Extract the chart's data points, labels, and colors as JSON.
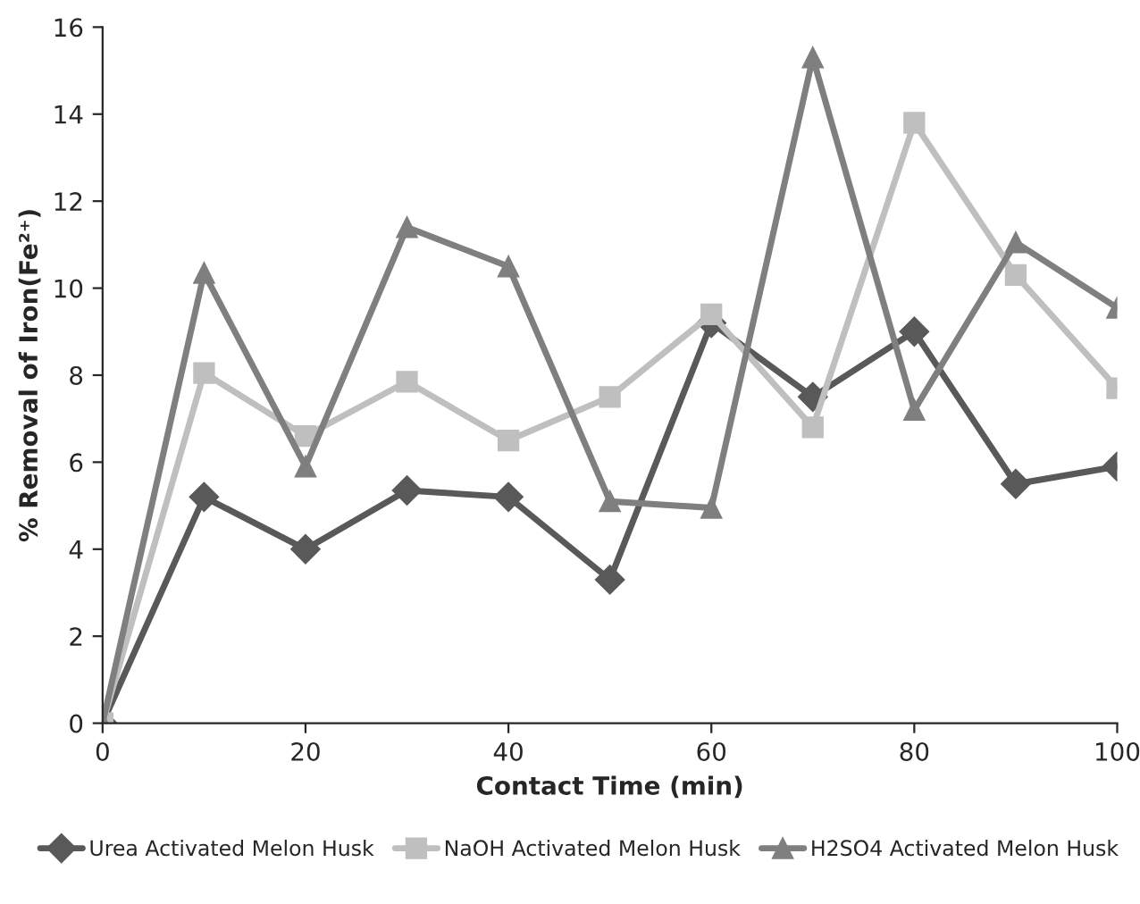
{
  "chart_data": {
    "type": "line",
    "xlabel": "Contact Time (min)",
    "ylabel": "% Removal of Iron(Fe²⁺)",
    "x": [
      0,
      10,
      20,
      30,
      40,
      50,
      60,
      70,
      80,
      90,
      100
    ],
    "series": [
      {
        "name": "Urea Activated Melon Husk",
        "color": "#595959",
        "marker": "diamond",
        "values": [
          0,
          5.2,
          4.0,
          5.35,
          5.2,
          3.3,
          9.2,
          7.5,
          9.0,
          5.5,
          5.9
        ]
      },
      {
        "name": "NaOH Activated Melon Husk",
        "color": "#bfbfbf",
        "marker": "square",
        "values": [
          0,
          8.05,
          6.6,
          7.85,
          6.5,
          7.5,
          9.4,
          6.8,
          13.8,
          10.3,
          7.7
        ]
      },
      {
        "name": "H2SO4 Activated Melon Husk",
        "color": "#7f7f7f",
        "marker": "triangle",
        "values": [
          0,
          10.35,
          5.9,
          11.4,
          10.5,
          5.1,
          4.95,
          15.3,
          7.2,
          11.05,
          9.55
        ]
      }
    ],
    "xlim": [
      0,
      100
    ],
    "xticks": [
      0,
      20,
      40,
      60,
      80,
      100
    ],
    "ylim": [
      0,
      16
    ],
    "yticks": [
      0,
      2,
      4,
      6,
      8,
      10,
      12,
      14,
      16
    ],
    "grid": false,
    "legend": "bottom",
    "line_style": "solid"
  }
}
